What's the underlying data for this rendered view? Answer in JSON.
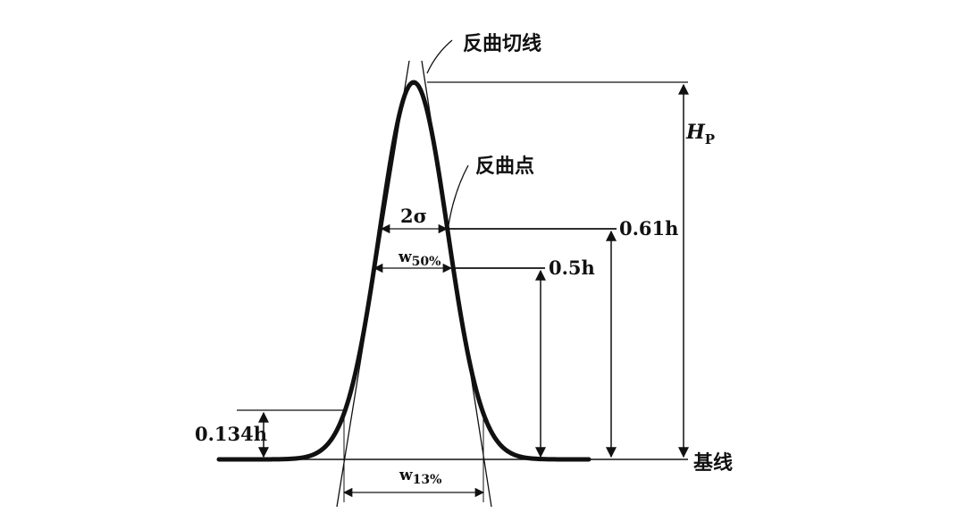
{
  "diagram": {
    "labels": {
      "inflection_tangent": "反曲切线",
      "inflection_point": "反曲点",
      "peak_height": "H",
      "peak_height_sub": "P",
      "two_sigma": "2σ",
      "w50": "w",
      "w50_sub": "50%",
      "w13": "w",
      "w13_sub": "13%",
      "level_061": "0.61h",
      "level_05": "0.5h",
      "level_0134": "0.134h",
      "baseline": "基线"
    }
  },
  "colors": {
    "ink": "#111111",
    "background": "#ffffff"
  }
}
